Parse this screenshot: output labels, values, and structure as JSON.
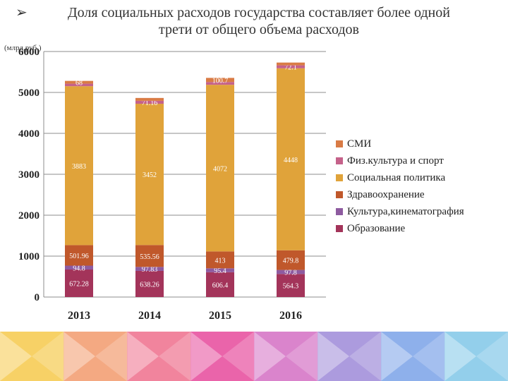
{
  "title": {
    "bullet": "➢",
    "line1": "Доля социальных расходов государства составляет более одной",
    "line2": "трети от общего объема расходов"
  },
  "unit_label": "(млрд.руб.)",
  "chart_data": {
    "type": "bar",
    "stacked": true,
    "categories": [
      "2013",
      "2014",
      "2015",
      "2016"
    ],
    "ylim": [
      0,
      6000
    ],
    "yticks": [
      "0",
      "1000",
      "2000",
      "3000",
      "4000",
      "5000",
      "6000"
    ],
    "grid": true,
    "legend_position": "right",
    "series": [
      {
        "name": "Образование",
        "color": "#a3345a",
        "values": [
          672.28,
          638.26,
          606.4,
          564.3
        ],
        "labels": [
          "672.28",
          "638.26",
          "606.4",
          "564.3"
        ]
      },
      {
        "name": "Культура,кинематография",
        "color": "#8e5ba0",
        "values": [
          94.8,
          97.83,
          95.4,
          97.8
        ],
        "labels": [
          "94.8",
          "97.83",
          "95.4",
          "97.8"
        ]
      },
      {
        "name": "Здравоохранение",
        "color": "#c0582b",
        "values": [
          501.96,
          535.56,
          413,
          479.8
        ],
        "labels": [
          "501.96",
          "535.56",
          "413",
          "479.8"
        ]
      },
      {
        "name": "Социальная политика",
        "color": "#e0a33a",
        "values": [
          3883,
          3452,
          4072,
          4448
        ],
        "labels": [
          "3883",
          "3452",
          "4072",
          "4448"
        ]
      },
      {
        "name": "Физ.культура и спорт",
        "color": "#c5628a",
        "values": [
          62,
          71.16,
          68,
          72.1
        ],
        "labels": [
          "",
          "71.16",
          "",
          "72.1"
        ]
      },
      {
        "name": "СМИ",
        "color": "#d97b45",
        "values": [
          68,
          70,
          100.7,
          68
        ],
        "labels": [
          "68",
          "",
          "100.7",
          ""
        ]
      }
    ]
  },
  "footer_colors": [
    "#f6c94b",
    "#f29a6c",
    "#ee6f8c",
    "#e6499b",
    "#d46ec3",
    "#9d8ad8",
    "#7aa2e8",
    "#80c7e8"
  ]
}
